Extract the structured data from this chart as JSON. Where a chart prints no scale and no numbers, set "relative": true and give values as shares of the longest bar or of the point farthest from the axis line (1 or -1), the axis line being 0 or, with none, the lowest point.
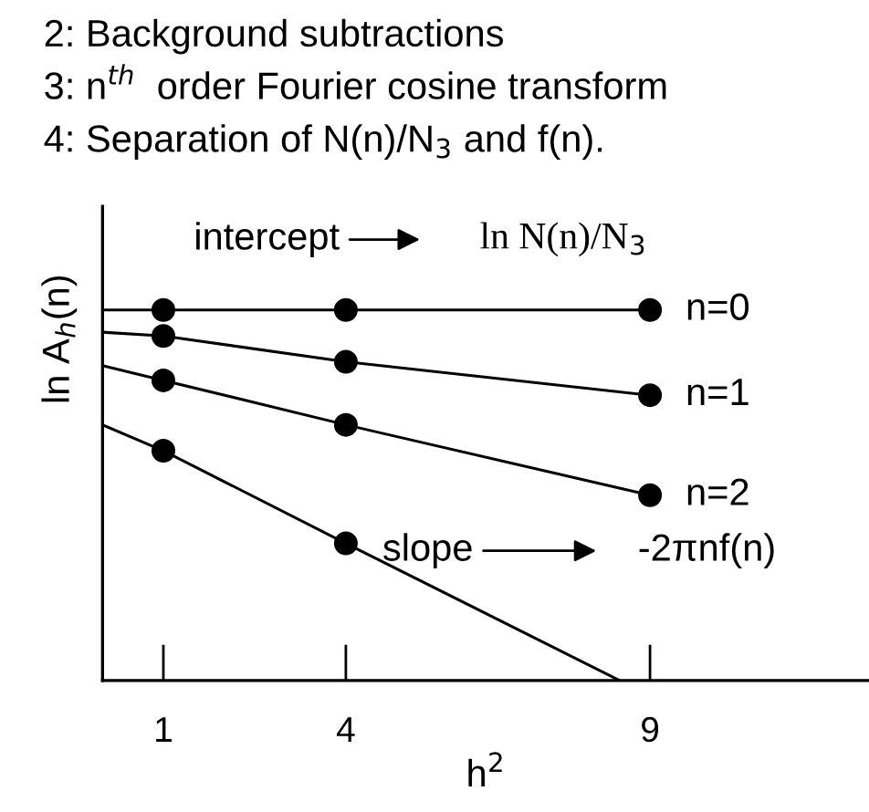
{
  "chart_data": {
    "type": "line",
    "relative": true,
    "xlabel": "h$^{2}$",
    "ylabel": "ln A$_{h}$(n)",
    "xlim": [
      0,
      12.6
    ],
    "xticks": [
      1,
      4,
      9
    ],
    "grid": false,
    "legend": false,
    "series": [
      {
        "name": "n=0",
        "color": "#000000",
        "x": [
          0,
          1,
          4,
          9
        ],
        "values": [
          1,
          1,
          1,
          1
        ],
        "marker": "none"
      },
      {
        "name": "n=1",
        "color": "#000000",
        "x": [
          0,
          1,
          4,
          9
        ],
        "values": [
          0.94,
          0.93,
          0.86,
          0.77
        ],
        "marker": "none"
      },
      {
        "name": "n=2",
        "color": "#000000",
        "x": [
          0,
          1,
          4,
          9
        ],
        "values": [
          0.85,
          0.81,
          0.69,
          0.5
        ],
        "marker": "none"
      },
      {
        "color": "#000000",
        "x": [
          0,
          1,
          4,
          8.5
        ],
        "values": [
          0.69,
          0.62,
          0.37,
          0
        ],
        "marker": "none"
      },
      {
        "type": "scatter",
        "color": "#000000",
        "x": [
          1,
          4,
          9
        ],
        "values": [
          1,
          1,
          1
        ],
        "marker": "circle"
      },
      {
        "type": "scatter",
        "color": "#000000",
        "x": [
          1,
          4,
          9
        ],
        "values": [
          0.93,
          0.86,
          0.77
        ],
        "marker": "circle"
      },
      {
        "type": "scatter",
        "color": "#000000",
        "x": [
          1,
          4,
          9
        ],
        "values": [
          0.81,
          0.69,
          0.5
        ],
        "marker": "circle"
      },
      {
        "type": "scatter",
        "color": "#000000",
        "x": [
          1,
          4
        ],
        "values": [
          0.62,
          0.37
        ],
        "marker": "circle"
      }
    ],
    "annotations": [
      "2: Background subtractions",
      "3: n$^{th}$  order Fourier cosine transform",
      "4: Separation of N(n)/N$_{3}$ and f(n).",
      "intercept",
      "ln N(n)/N$_{3}$",
      "slope",
      "-2πnf(n)"
    ]
  }
}
